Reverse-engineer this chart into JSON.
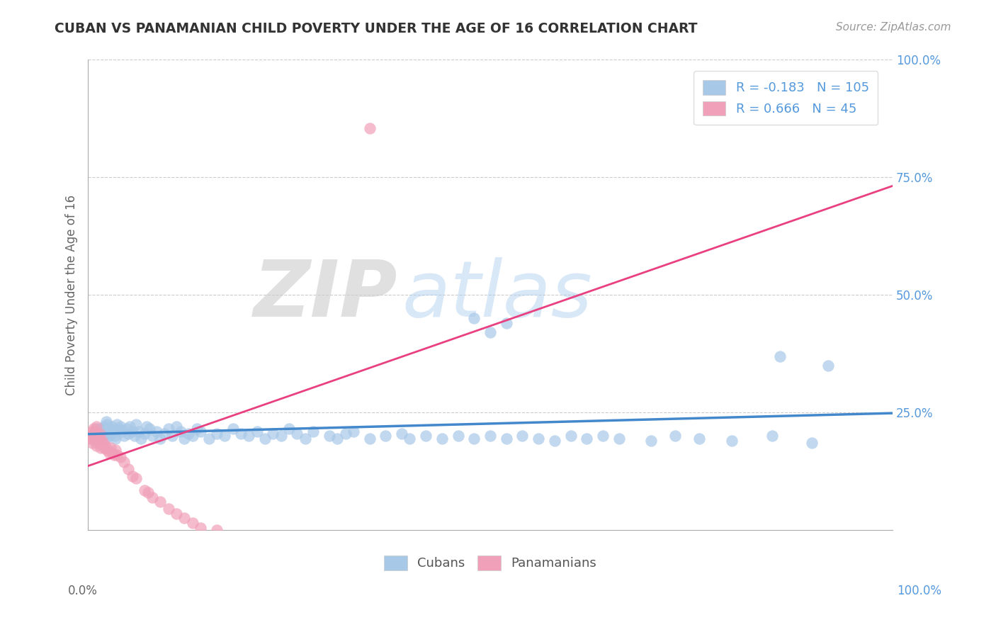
{
  "title": "CUBAN VS PANAMANIAN CHILD POVERTY UNDER THE AGE OF 16 CORRELATION CHART",
  "source": "Source: ZipAtlas.com",
  "ylabel": "Child Poverty Under the Age of 16",
  "xlim": [
    0,
    1
  ],
  "ylim": [
    0,
    1
  ],
  "legend_R_blue": "-0.183",
  "legend_N_blue": "105",
  "legend_R_pink": "0.666",
  "legend_N_pink": "45",
  "blue_color": "#A8C8E8",
  "blue_edge": "#A8C8E8",
  "pink_color": "#F0A0B8",
  "pink_edge": "#F0A0B8",
  "trend_blue_color": "#4488CC",
  "trend_pink_color": "#E84080",
  "background_color": "#FFFFFF",
  "cubans_x": [
    0.005,
    0.007,
    0.008,
    0.009,
    0.01,
    0.01,
    0.011,
    0.011,
    0.012,
    0.013,
    0.014,
    0.015,
    0.016,
    0.017,
    0.018,
    0.019,
    0.02,
    0.02,
    0.021,
    0.022,
    0.023,
    0.024,
    0.025,
    0.026,
    0.027,
    0.028,
    0.03,
    0.032,
    0.033,
    0.034,
    0.036,
    0.038,
    0.04,
    0.042,
    0.045,
    0.048,
    0.05,
    0.052,
    0.055,
    0.058,
    0.06,
    0.063,
    0.066,
    0.07,
    0.073,
    0.076,
    0.08,
    0.085,
    0.09,
    0.095,
    0.1,
    0.105,
    0.11,
    0.115,
    0.12,
    0.125,
    0.13,
    0.135,
    0.14,
    0.15,
    0.16,
    0.17,
    0.18,
    0.19,
    0.2,
    0.21,
    0.22,
    0.23,
    0.24,
    0.25,
    0.26,
    0.27,
    0.28,
    0.3,
    0.31,
    0.32,
    0.33,
    0.35,
    0.37,
    0.39,
    0.4,
    0.42,
    0.44,
    0.46,
    0.48,
    0.5,
    0.52,
    0.54,
    0.56,
    0.58,
    0.6,
    0.62,
    0.64,
    0.66,
    0.7,
    0.73,
    0.76,
    0.8,
    0.85,
    0.9,
    0.48,
    0.5,
    0.52,
    0.86,
    0.92
  ],
  "cubans_y": [
    0.195,
    0.2,
    0.205,
    0.19,
    0.21,
    0.215,
    0.2,
    0.205,
    0.195,
    0.21,
    0.215,
    0.2,
    0.195,
    0.205,
    0.21,
    0.2,
    0.215,
    0.22,
    0.205,
    0.195,
    0.23,
    0.225,
    0.21,
    0.2,
    0.215,
    0.205,
    0.22,
    0.21,
    0.2,
    0.195,
    0.225,
    0.215,
    0.22,
    0.21,
    0.2,
    0.215,
    0.205,
    0.22,
    0.21,
    0.2,
    0.225,
    0.21,
    0.195,
    0.205,
    0.22,
    0.215,
    0.2,
    0.21,
    0.195,
    0.205,
    0.215,
    0.2,
    0.22,
    0.21,
    0.195,
    0.205,
    0.2,
    0.215,
    0.21,
    0.195,
    0.205,
    0.2,
    0.215,
    0.205,
    0.2,
    0.21,
    0.195,
    0.205,
    0.2,
    0.215,
    0.205,
    0.195,
    0.21,
    0.2,
    0.195,
    0.205,
    0.21,
    0.195,
    0.2,
    0.205,
    0.195,
    0.2,
    0.195,
    0.2,
    0.195,
    0.2,
    0.195,
    0.2,
    0.195,
    0.19,
    0.2,
    0.195,
    0.2,
    0.195,
    0.19,
    0.2,
    0.195,
    0.19,
    0.2,
    0.185,
    0.45,
    0.42,
    0.44,
    0.37,
    0.35
  ],
  "panamanians_x": [
    0.003,
    0.004,
    0.005,
    0.005,
    0.006,
    0.007,
    0.007,
    0.008,
    0.008,
    0.009,
    0.01,
    0.01,
    0.011,
    0.012,
    0.013,
    0.014,
    0.015,
    0.016,
    0.017,
    0.018,
    0.02,
    0.022,
    0.024,
    0.026,
    0.028,
    0.03,
    0.032,
    0.034,
    0.036,
    0.04,
    0.045,
    0.05,
    0.055,
    0.06,
    0.07,
    0.075,
    0.08,
    0.09,
    0.1,
    0.11,
    0.12,
    0.13,
    0.14,
    0.16,
    0.35
  ],
  "panamanians_y": [
    0.195,
    0.2,
    0.185,
    0.21,
    0.2,
    0.195,
    0.215,
    0.205,
    0.2,
    0.21,
    0.18,
    0.22,
    0.195,
    0.2,
    0.185,
    0.195,
    0.205,
    0.175,
    0.19,
    0.185,
    0.175,
    0.18,
    0.17,
    0.165,
    0.175,
    0.165,
    0.16,
    0.17,
    0.16,
    0.155,
    0.145,
    0.13,
    0.115,
    0.11,
    0.085,
    0.08,
    0.07,
    0.06,
    0.045,
    0.035,
    0.025,
    0.015,
    0.005,
    0.0,
    0.855
  ]
}
